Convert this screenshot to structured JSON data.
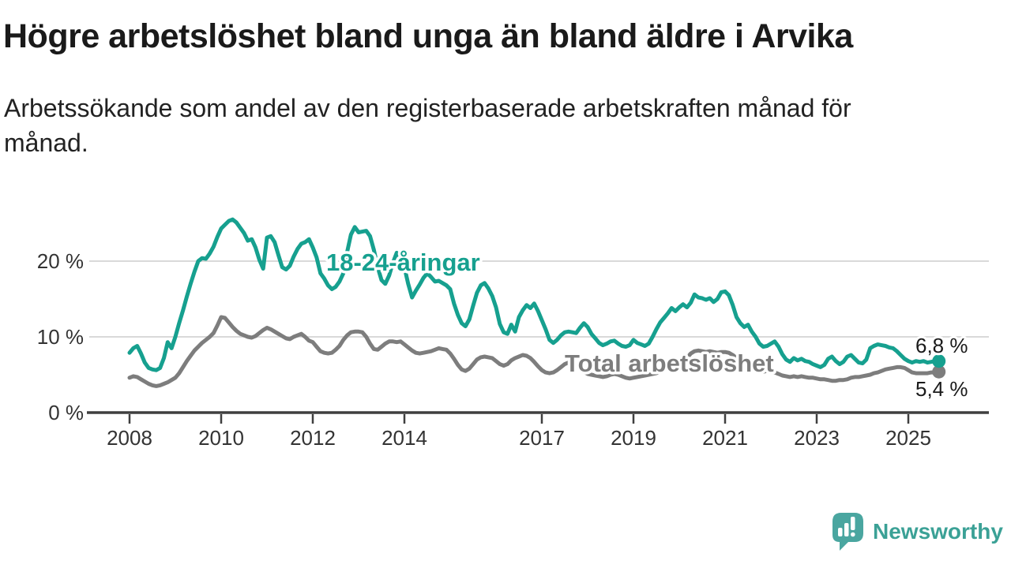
{
  "header": {
    "title": "Högre arbetslöshet bland unga än bland äldre i Arvika",
    "subtitle": "Arbetssökande som andel av den registerbaserade arbetskraften månad för månad."
  },
  "chart_data": {
    "type": "line",
    "title": "Högre arbetslöshet bland unga än bland äldre i Arvika",
    "xlabel": "",
    "ylabel": "",
    "unit": "%",
    "x_start": 2008,
    "points_per_year": 12,
    "x_ticks": [
      "2008",
      "2010",
      "2012",
      "2014",
      "2017",
      "2019",
      "2021",
      "2023",
      "2025"
    ],
    "y_ticks": [
      {
        "value": 0,
        "label": "0 %"
      },
      {
        "value": 10,
        "label": "10 %"
      },
      {
        "value": 20,
        "label": "20 %"
      }
    ],
    "ylim": [
      0,
      27
    ],
    "grid": "horizontal",
    "legend_position": "inline-labels",
    "series": [
      {
        "name": "Total arbetslöshet",
        "data_name": "total-arbetsloshet",
        "color": "#7d7d7d",
        "end_label": "5,4 %",
        "end_value": 5.4,
        "values": [
          4.6,
          4.8,
          4.7,
          4.4,
          4.1,
          3.8,
          3.6,
          3.5,
          3.6,
          3.8,
          4.0,
          4.3,
          4.6,
          5.2,
          6.0,
          6.8,
          7.5,
          8.2,
          8.7,
          9.2,
          9.6,
          10.0,
          10.5,
          11.5,
          12.6,
          12.5,
          11.9,
          11.3,
          10.8,
          10.4,
          10.2,
          10.0,
          9.9,
          10.1,
          10.5,
          10.9,
          11.2,
          11.0,
          10.7,
          10.4,
          10.1,
          9.8,
          9.7,
          10.0,
          10.2,
          10.4,
          10.0,
          9.5,
          9.3,
          8.7,
          8.1,
          7.9,
          7.8,
          7.9,
          8.3,
          8.8,
          9.6,
          10.2,
          10.6,
          10.7,
          10.7,
          10.6,
          10.0,
          9.1,
          8.4,
          8.3,
          8.7,
          9.1,
          9.4,
          9.4,
          9.3,
          9.4,
          9.0,
          8.6,
          8.2,
          7.9,
          7.8,
          7.9,
          8.0,
          8.1,
          8.3,
          8.5,
          8.4,
          8.3,
          7.8,
          7.1,
          6.3,
          5.7,
          5.5,
          5.8,
          6.4,
          7.0,
          7.3,
          7.4,
          7.3,
          7.2,
          6.8,
          6.4,
          6.2,
          6.4,
          6.9,
          7.2,
          7.4,
          7.6,
          7.5,
          7.2,
          6.7,
          6.1,
          5.6,
          5.3,
          5.2,
          5.3,
          5.6,
          6.0,
          6.4,
          6.6,
          6.5,
          6.2,
          5.8,
          5.4,
          5.1,
          5.0,
          4.9,
          4.8,
          4.7,
          4.8,
          5.0,
          5.1,
          5.0,
          4.8,
          4.6,
          4.5,
          4.6,
          4.7,
          4.8,
          4.9,
          5.0,
          5.1,
          5.2,
          5.4,
          5.6,
          5.9,
          6.2,
          6.5,
          6.8,
          7.0,
          7.2,
          7.8,
          8.1,
          8.2,
          8.1,
          8.0,
          8.1,
          8.0,
          7.9,
          8.0,
          8.0,
          7.9,
          7.6,
          7.2,
          6.8,
          6.4,
          6.1,
          5.8,
          5.6,
          5.5,
          5.4,
          5.5,
          5.4,
          5.3,
          5.1,
          4.9,
          4.8,
          4.7,
          4.8,
          4.7,
          4.8,
          4.7,
          4.6,
          4.6,
          4.5,
          4.4,
          4.4,
          4.3,
          4.2,
          4.2,
          4.3,
          4.3,
          4.4,
          4.6,
          4.7,
          4.7,
          4.8,
          4.9,
          5.0,
          5.2,
          5.3,
          5.5,
          5.7,
          5.8,
          5.9,
          6.0,
          6.0,
          5.9,
          5.6,
          5.3,
          5.2,
          5.2,
          5.2,
          5.2,
          5.3,
          5.3,
          5.4
        ]
      },
      {
        "name": "18-24-åringar",
        "data_name": "18-24-aringar",
        "color": "#16a08f",
        "end_label": "6,8 %",
        "end_value": 6.8,
        "values": [
          7.9,
          8.5,
          8.8,
          7.8,
          6.6,
          5.9,
          5.7,
          5.6,
          5.9,
          7.2,
          9.3,
          8.5,
          10.0,
          11.8,
          13.5,
          15.3,
          17.0,
          18.6,
          20.0,
          20.4,
          20.3,
          21.0,
          21.9,
          23.2,
          24.3,
          24.8,
          25.3,
          25.5,
          25.1,
          24.4,
          23.7,
          22.7,
          22.9,
          21.8,
          20.2,
          19.0,
          23.1,
          23.3,
          22.5,
          20.8,
          19.2,
          18.9,
          19.4,
          20.6,
          21.6,
          22.3,
          22.5,
          22.9,
          21.8,
          20.5,
          18.4,
          17.7,
          16.8,
          16.3,
          16.6,
          17.3,
          18.4,
          21.2,
          23.5,
          24.5,
          23.8,
          23.9,
          24.0,
          23.3,
          21.5,
          19.2,
          17.5,
          17.0,
          18.1,
          19.8,
          21.1,
          20.4,
          19.2,
          17.0,
          15.2,
          16.1,
          16.9,
          17.8,
          18.4,
          17.9,
          17.3,
          17.4,
          17.1,
          16.8,
          16.3,
          14.4,
          12.9,
          11.8,
          11.4,
          12.3,
          14.1,
          15.8,
          16.8,
          17.1,
          16.4,
          15.4,
          13.9,
          11.7,
          10.6,
          10.4,
          11.6,
          10.7,
          12.6,
          13.5,
          14.2,
          13.8,
          14.4,
          13.4,
          12.2,
          11.0,
          9.6,
          9.2,
          9.6,
          10.2,
          10.6,
          10.7,
          10.6,
          10.5,
          11.2,
          11.8,
          11.3,
          10.4,
          9.8,
          9.2,
          8.9,
          9.1,
          9.4,
          9.5,
          9.1,
          8.8,
          8.7,
          8.9,
          9.6,
          9.2,
          9.0,
          8.8,
          9.1,
          10.0,
          11.0,
          11.9,
          12.5,
          13.1,
          13.8,
          13.4,
          13.9,
          14.3,
          13.9,
          14.5,
          15.6,
          15.2,
          15.1,
          14.9,
          15.1,
          14.6,
          15.0,
          15.9,
          16.0,
          15.5,
          14.2,
          12.6,
          11.8,
          11.3,
          11.6,
          10.7,
          10.0,
          9.1,
          8.7,
          8.8,
          9.1,
          9.4,
          8.7,
          7.7,
          7.0,
          6.7,
          7.2,
          6.9,
          7.1,
          6.8,
          6.7,
          6.4,
          6.2,
          6.0,
          6.3,
          7.1,
          7.4,
          6.8,
          6.4,
          6.7,
          7.4,
          7.6,
          7.1,
          6.6,
          6.5,
          7.0,
          8.5,
          8.8,
          9.0,
          8.9,
          8.8,
          8.6,
          8.5,
          8.1,
          7.6,
          7.1,
          6.8,
          6.6,
          6.8,
          6.7,
          6.8,
          6.6,
          6.7,
          6.8,
          6.8
        ]
      }
    ]
  },
  "logo": {
    "text": "Newsworthy",
    "color": "#3ba196",
    "icon": "newsworthy-bubble-barchart-icon",
    "icon_color": "#4aa6a0"
  }
}
